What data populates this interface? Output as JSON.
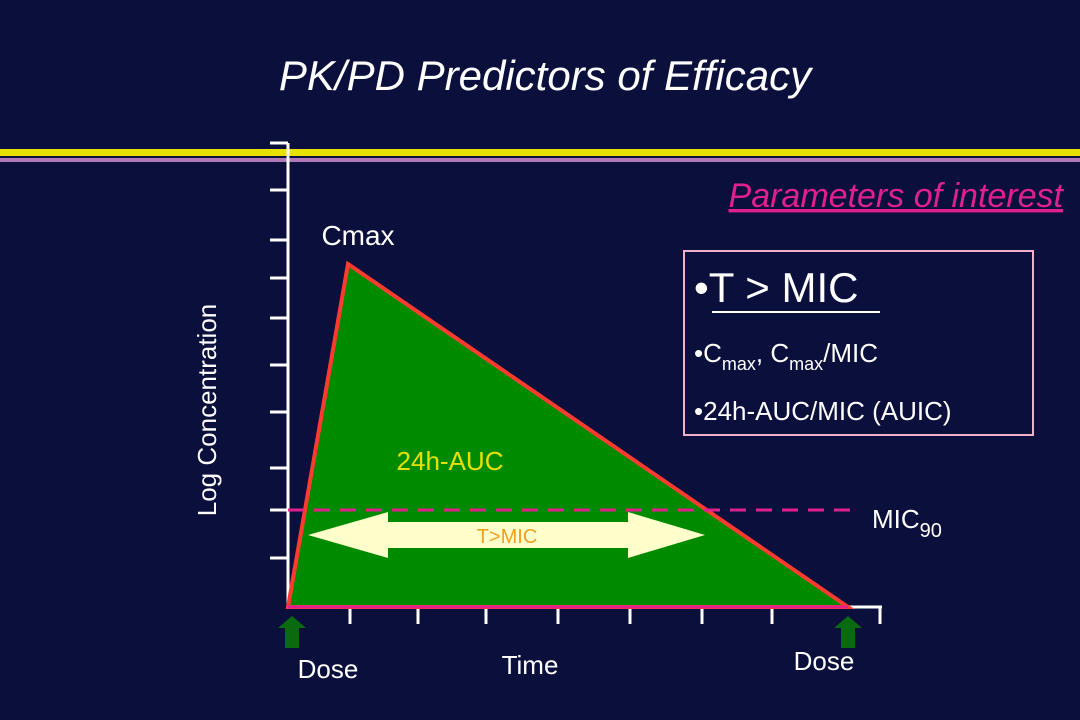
{
  "header": {
    "title": "PK/PD Predictors of Efficacy",
    "subtitle": "Parameters of interest"
  },
  "box": {
    "item1": "•T > MIC",
    "item2": {
      "p1": "•C",
      "s1": "max",
      "p2": ", C",
      "s2": "max",
      "p3": "/MIC"
    },
    "item3": "•24h-AUC/MIC (AUIC)"
  },
  "diagram": {
    "peak_label": "Cmax",
    "area_label": "24h-AUC",
    "arrow_label": "T>MIC",
    "mic_label": {
      "base": "MIC",
      "sub": "90"
    },
    "y_axis_label": "Log Concentration",
    "x_axis_label": "Time",
    "dose_left": "Dose",
    "dose_right": "Dose"
  }
}
